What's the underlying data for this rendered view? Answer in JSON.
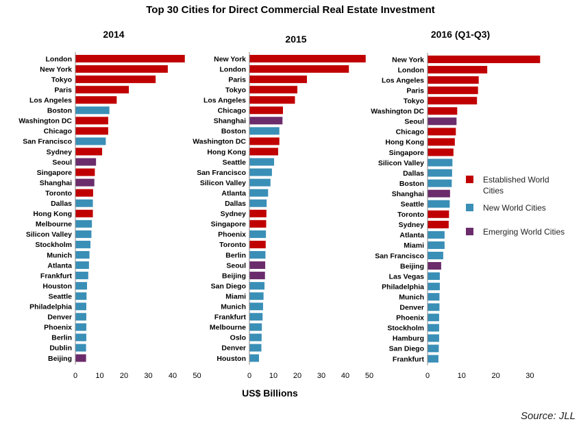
{
  "title": "Top 30 Cities for Direct Commercial Real Estate Investment",
  "xlabel": "US$ Billions",
  "source": "Source: JLL",
  "legend": [
    {
      "key": "established",
      "lines": [
        "Established World",
        "Cities"
      ],
      "color": "#c00000"
    },
    {
      "key": "new",
      "lines": [
        "New World Cities"
      ],
      "color": "#3a8fb7"
    },
    {
      "key": "emerging",
      "lines": [
        "Emerging World Cities"
      ],
      "color": "#6b2c6b"
    }
  ],
  "chart_data": [
    {
      "type": "bar",
      "orientation": "horizontal",
      "title": "2014",
      "xlim": [
        0,
        50
      ],
      "ticks": [
        "0",
        "10",
        "20",
        "30",
        "40",
        "50"
      ],
      "categories": [
        "London",
        "New York",
        "Tokyo",
        "Paris",
        "Los Angeles",
        "Boston",
        "Washington DC",
        "Chicago",
        "San Francisco",
        "Sydney",
        "Seoul",
        "Singapore",
        "Shanghai",
        "Toronto",
        "Dallas",
        "Hong Kong",
        "Melbourne",
        "Silicon Valley",
        "Stockholm",
        "Munich",
        "Atlanta",
        "Frankfurt",
        "Houston",
        "Seattle",
        "Philadelphia",
        "Denver",
        "Phoenix",
        "Berlin",
        "Dublin",
        "Beijing"
      ],
      "values": [
        45,
        38,
        33,
        22,
        17,
        14,
        13.5,
        13.5,
        12.5,
        11,
        8.5,
        8,
        7.8,
        7.3,
        7.2,
        7.2,
        6.8,
        6.6,
        6.2,
        5.8,
        5.6,
        5.3,
        4.8,
        4.6,
        4.5,
        4.5,
        4.5,
        4.5,
        4.4,
        4.4
      ],
      "groups": [
        "established",
        "established",
        "established",
        "established",
        "established",
        "new",
        "established",
        "established",
        "new",
        "established",
        "emerging",
        "established",
        "emerging",
        "established",
        "new",
        "established",
        "new",
        "new",
        "new",
        "new",
        "new",
        "new",
        "new",
        "new",
        "new",
        "new",
        "new",
        "new",
        "new",
        "emerging"
      ]
    },
    {
      "type": "bar",
      "orientation": "horizontal",
      "title": "2015",
      "xlim": [
        0,
        50
      ],
      "ticks": [
        "0",
        "10",
        "20",
        "30",
        "40",
        "50"
      ],
      "categories": [
        "New York",
        "London",
        "Paris",
        "Tokyo",
        "Los Angeles",
        "Chicago",
        "Shanghai",
        "Boston",
        "Washington DC",
        "Hong Kong",
        "Seattle",
        "San Francisco",
        "Silicon Valley",
        "Atlanta",
        "Dallas",
        "Sydney",
        "Singapore",
        "Phoenix",
        "Toronto",
        "Berlin",
        "Seoul",
        "Beijing",
        "San Diego",
        "Miami",
        "Munich",
        "Frankfurt",
        "Melbourne",
        "Oslo",
        "Denver",
        "Houston"
      ],
      "values": [
        48.5,
        41.5,
        24,
        20,
        19,
        14,
        13.8,
        12.5,
        12.5,
        12,
        10.3,
        9.4,
        8.8,
        7.8,
        7.2,
        7.1,
        7,
        6.9,
        6.8,
        6.7,
        6.6,
        6.5,
        6.3,
        5.9,
        5.7,
        5.5,
        5.2,
        5.1,
        5,
        4
      ],
      "groups": [
        "established",
        "established",
        "established",
        "established",
        "established",
        "established",
        "emerging",
        "new",
        "established",
        "established",
        "new",
        "new",
        "new",
        "new",
        "new",
        "established",
        "established",
        "new",
        "established",
        "new",
        "emerging",
        "emerging",
        "new",
        "new",
        "new",
        "new",
        "new",
        "new",
        "new",
        "new"
      ]
    },
    {
      "type": "bar",
      "orientation": "horizontal",
      "title": "2016 (Q1-Q3)",
      "xlim": [
        0,
        35
      ],
      "ticks": [
        "0",
        "10",
        "20",
        "30"
      ],
      "categories": [
        "New York",
        "London",
        "Los Angeles",
        "Paris",
        "Tokyo",
        "Washington DC",
        "Seoul",
        "Chicago",
        "Hong Kong",
        "Singapore",
        "Silicon Valley",
        "Dallas",
        "Boston",
        "Shanghai",
        "Seattle",
        "Toronto",
        "Sydney",
        "Atlanta",
        "Miami",
        "San Francisco",
        "Beijing",
        "Las Vegas",
        "Philadelphia",
        "Munich",
        "Denver",
        "Phoenix",
        "Stockholm",
        "Hamburg",
        "San Diego",
        "Frankfurt"
      ],
      "values": [
        33,
        17.5,
        15,
        14.8,
        14.5,
        8.7,
        8.5,
        8.3,
        8,
        7.6,
        7.3,
        7.2,
        7.1,
        6.6,
        6.5,
        6.3,
        6.2,
        5,
        5,
        4.6,
        4,
        3.6,
        3.6,
        3.5,
        3.5,
        3.4,
        3.4,
        3.4,
        3.3,
        3.2
      ],
      "groups": [
        "established",
        "established",
        "established",
        "established",
        "established",
        "established",
        "emerging",
        "established",
        "established",
        "established",
        "new",
        "new",
        "new",
        "emerging",
        "new",
        "established",
        "established",
        "new",
        "new",
        "new",
        "emerging",
        "new",
        "new",
        "new",
        "new",
        "new",
        "new",
        "new",
        "new",
        "new"
      ]
    }
  ]
}
